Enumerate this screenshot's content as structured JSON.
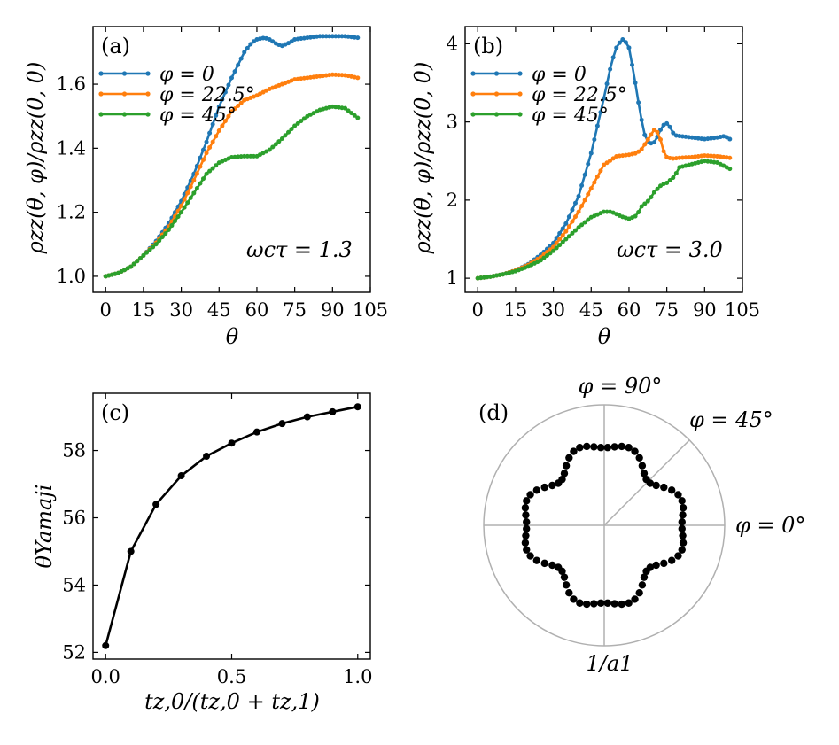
{
  "figure": {
    "panels": {
      "a": {
        "label": "(a)",
        "annotation": "ωcτ = 1.3",
        "xlabel": "θ",
        "ylabel": "ρzz(θ, φ)/ρzz(0, 0)"
      },
      "b": {
        "label": "(b)",
        "annotation": "ωcτ = 3.0",
        "xlabel": "θ",
        "ylabel": "ρzz(θ, φ)/ρzz(0, 0)"
      },
      "c": {
        "label": "(c)",
        "xlabel": "tz,0/(tz,0 + tz,1)",
        "ylabel": "θYamaji"
      },
      "d": {
        "label": "(d)",
        "angle_label_90": "φ = 90°",
        "angle_label_45": "φ = 45°",
        "angle_label_0": "φ = 0°",
        "radius_label": "1/a1"
      }
    },
    "legend": [
      "φ = 0",
      "φ = 22.5°",
      "φ = 45°"
    ],
    "colors": {
      "phi0": "#1f77b4",
      "phi22": "#ff7f0e",
      "phi45": "#2ca02c",
      "marker": "#000000",
      "polar_grid": "#b0b0b0"
    }
  },
  "chart_data": [
    {
      "type": "line",
      "panel": "a",
      "title": "",
      "xlabel": "θ",
      "ylabel": "ρzz(θ, φ)/ρzz(0, 0)",
      "annotation": "ωcτ = 1.3",
      "xlim": [
        -5,
        105
      ],
      "ylim": [
        0.95,
        1.78
      ],
      "xticks": [
        "0",
        "15",
        "30",
        "45",
        "60",
        "75",
        "90",
        "105"
      ],
      "yticks": [
        "1.0",
        "1.2",
        "1.4",
        "1.6"
      ],
      "legend_position": "top-left",
      "series": [
        {
          "name": "φ = 0",
          "x": [
            0,
            5,
            10,
            15,
            20,
            25,
            30,
            35,
            40,
            45,
            50,
            55,
            58,
            60,
            63,
            65,
            68,
            70,
            73,
            75,
            80,
            85,
            90,
            95,
            100
          ],
          "y": [
            1.0,
            1.01,
            1.03,
            1.065,
            1.11,
            1.165,
            1.235,
            1.32,
            1.42,
            1.53,
            1.62,
            1.7,
            1.73,
            1.74,
            1.745,
            1.74,
            1.725,
            1.72,
            1.73,
            1.74,
            1.745,
            1.75,
            1.75,
            1.75,
            1.745
          ]
        },
        {
          "name": "φ = 22.5°",
          "x": [
            0,
            5,
            10,
            15,
            20,
            25,
            30,
            35,
            40,
            45,
            50,
            55,
            60,
            65,
            70,
            75,
            80,
            85,
            90,
            95,
            100
          ],
          "y": [
            1.0,
            1.01,
            1.03,
            1.065,
            1.105,
            1.155,
            1.22,
            1.3,
            1.385,
            1.455,
            1.515,
            1.55,
            1.565,
            1.585,
            1.6,
            1.615,
            1.62,
            1.625,
            1.63,
            1.628,
            1.62
          ]
        },
        {
          "name": "φ = 45°",
          "x": [
            0,
            5,
            10,
            15,
            20,
            25,
            30,
            35,
            40,
            45,
            50,
            55,
            60,
            65,
            70,
            75,
            80,
            85,
            90,
            95,
            100
          ],
          "y": [
            1.0,
            1.01,
            1.03,
            1.065,
            1.1,
            1.145,
            1.2,
            1.26,
            1.32,
            1.355,
            1.372,
            1.375,
            1.375,
            1.395,
            1.43,
            1.47,
            1.5,
            1.52,
            1.53,
            1.525,
            1.495
          ]
        }
      ]
    },
    {
      "type": "line",
      "panel": "b",
      "title": "",
      "xlabel": "θ",
      "ylabel": "ρzz(θ, φ)/ρzz(0, 0)",
      "annotation": "ωcτ = 3.0",
      "xlim": [
        -5,
        105
      ],
      "ylim": [
        0.82,
        4.22
      ],
      "xticks": [
        "0",
        "15",
        "30",
        "45",
        "60",
        "75",
        "90",
        "105"
      ],
      "yticks": [
        "1",
        "2",
        "3",
        "4"
      ],
      "legend_position": "top-left",
      "series": [
        {
          "name": "φ = 0",
          "x": [
            0,
            5,
            10,
            15,
            20,
            25,
            30,
            35,
            40,
            45,
            50,
            53,
            55,
            57,
            58,
            60,
            62,
            64,
            66,
            68,
            70,
            72,
            73,
            75,
            76,
            78,
            80,
            85,
            90,
            95,
            98,
            100
          ],
          "y": [
            1.0,
            1.02,
            1.05,
            1.1,
            1.18,
            1.3,
            1.45,
            1.7,
            2.05,
            2.6,
            3.3,
            3.75,
            3.95,
            4.05,
            4.06,
            3.95,
            3.6,
            3.2,
            2.85,
            2.72,
            2.74,
            2.85,
            2.95,
            2.98,
            2.95,
            2.83,
            2.82,
            2.8,
            2.78,
            2.8,
            2.82,
            2.78
          ]
        },
        {
          "name": "φ = 22.5°",
          "x": [
            0,
            5,
            10,
            15,
            20,
            25,
            30,
            35,
            40,
            45,
            50,
            55,
            60,
            63,
            65,
            68,
            70,
            72,
            73,
            74,
            75,
            77,
            80,
            85,
            90,
            95,
            100
          ],
          "y": [
            1.0,
            1.02,
            1.05,
            1.1,
            1.17,
            1.27,
            1.4,
            1.6,
            1.85,
            2.15,
            2.45,
            2.56,
            2.58,
            2.6,
            2.65,
            2.8,
            2.9,
            2.85,
            2.7,
            2.6,
            2.55,
            2.53,
            2.54,
            2.55,
            2.57,
            2.56,
            2.54
          ]
        },
        {
          "name": "φ = 45°",
          "x": [
            0,
            5,
            10,
            15,
            20,
            25,
            30,
            35,
            40,
            45,
            50,
            53,
            55,
            57,
            60,
            63,
            65,
            68,
            70,
            73,
            75,
            78,
            80,
            85,
            90,
            95,
            100
          ],
          "y": [
            1.0,
            1.02,
            1.05,
            1.09,
            1.15,
            1.23,
            1.35,
            1.5,
            1.65,
            1.78,
            1.85,
            1.85,
            1.82,
            1.79,
            1.76,
            1.8,
            1.92,
            2.0,
            2.1,
            2.2,
            2.22,
            2.3,
            2.42,
            2.46,
            2.5,
            2.48,
            2.4
          ]
        }
      ]
    },
    {
      "type": "line",
      "panel": "c",
      "title": "",
      "xlabel": "tz,0/(tz,0 + tz,1)",
      "ylabel": "θYamaji",
      "xlim": [
        -0.05,
        1.05
      ],
      "ylim": [
        51.8,
        59.7
      ],
      "xticks": [
        "0.0",
        "0.5",
        "1.0"
      ],
      "yticks": [
        "52",
        "54",
        "56",
        "58"
      ],
      "series": [
        {
          "name": "θYamaji",
          "x": [
            0.0,
            0.1,
            0.2,
            0.3,
            0.4,
            0.5,
            0.6,
            0.7,
            0.8,
            0.9,
            1.0
          ],
          "y": [
            52.2,
            55.0,
            56.4,
            57.25,
            57.83,
            58.22,
            58.55,
            58.8,
            59.0,
            59.15,
            59.3
          ]
        }
      ]
    },
    {
      "type": "scatter",
      "panel": "d",
      "title": "",
      "description_units": "polar plot of 1/a1 versus φ; radius normalized to outer circle = 1",
      "angle_labels": [
        "φ = 0°",
        "φ = 45°",
        "φ = 90°"
      ],
      "radius_label": "1/a1",
      "polar_radius_model": {
        "r0": 0.6215,
        "a4": 0.0655,
        "a8": -0.0425,
        "points": 72
      }
    }
  ]
}
